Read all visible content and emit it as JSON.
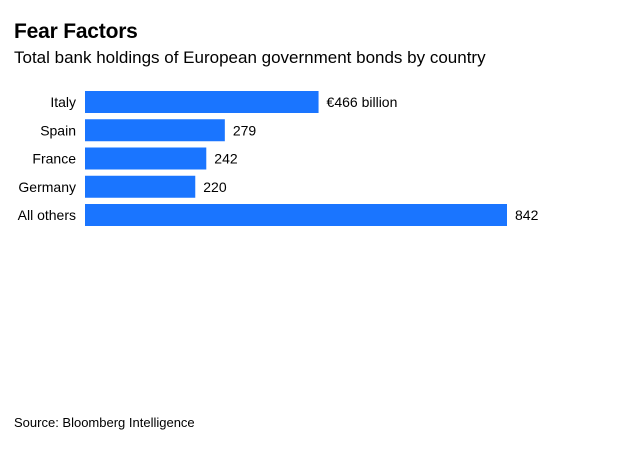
{
  "chart_data": {
    "type": "bar",
    "orientation": "horizontal",
    "title": "Fear Factors",
    "subtitle": "Total bank holdings of European government bonds by country",
    "categories": [
      "Italy",
      "Spain",
      "France",
      "Germany",
      "All others"
    ],
    "values": [
      466,
      279,
      242,
      220,
      842
    ],
    "value_labels": [
      "€466 billion",
      "279",
      "242",
      "220",
      "842"
    ],
    "unit": "€ billion",
    "xlim": [
      0,
      842
    ],
    "grid": false,
    "legend": "none",
    "bar_color": "#1a75ff",
    "source": "Source: Bloomberg Intelligence"
  }
}
